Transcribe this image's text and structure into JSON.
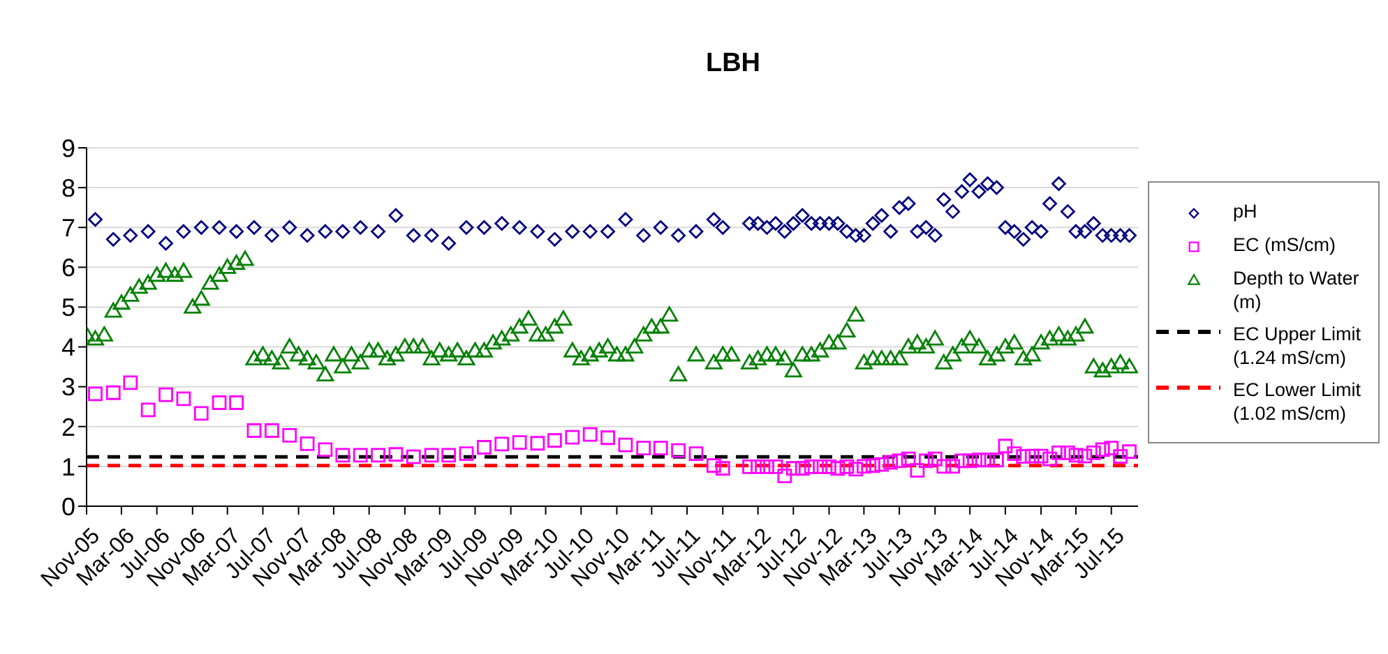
{
  "chart_data": {
    "type": "scatter",
    "title": "LBH",
    "x": [
      "2005-11",
      "2005-12",
      "2006-01",
      "2006-02",
      "2006-03",
      "2006-04",
      "2006-05",
      "2006-06",
      "2006-07",
      "2006-08",
      "2006-09",
      "2006-10",
      "2006-11",
      "2006-12",
      "2007-01",
      "2007-02",
      "2007-03",
      "2007-04",
      "2007-05",
      "2007-06",
      "2007-07",
      "2007-08",
      "2007-09",
      "2007-10",
      "2007-11",
      "2007-12",
      "2008-01",
      "2008-02",
      "2008-03",
      "2008-04",
      "2008-05",
      "2008-06",
      "2008-07",
      "2008-08",
      "2008-09",
      "2008-10",
      "2008-11",
      "2008-12",
      "2009-01",
      "2009-02",
      "2009-03",
      "2009-04",
      "2009-05",
      "2009-06",
      "2009-07",
      "2009-08",
      "2009-09",
      "2009-10",
      "2009-11",
      "2009-12",
      "2010-01",
      "2010-02",
      "2010-03",
      "2010-04",
      "2010-05",
      "2010-06",
      "2010-07",
      "2010-08",
      "2010-09",
      "2010-10",
      "2010-11",
      "2010-12",
      "2011-01",
      "2011-02",
      "2011-03",
      "2011-04",
      "2011-05",
      "2011-06",
      "2011-07",
      "2011-08",
      "2011-09",
      "2011-10",
      "2011-11",
      "2011-12",
      "2012-01",
      "2012-02",
      "2012-03",
      "2012-04",
      "2012-05",
      "2012-06",
      "2012-07",
      "2012-08",
      "2012-09",
      "2012-10",
      "2012-11",
      "2012-12",
      "2013-01",
      "2013-02",
      "2013-03",
      "2013-04",
      "2013-05",
      "2013-06",
      "2013-07",
      "2013-08",
      "2013-09",
      "2013-10",
      "2013-11",
      "2013-12",
      "2014-01",
      "2014-02",
      "2014-03",
      "2014-04",
      "2014-05",
      "2014-06",
      "2014-07",
      "2014-08",
      "2014-09",
      "2014-10",
      "2014-11",
      "2014-12",
      "2015-01",
      "2015-02",
      "2015-03",
      "2015-04",
      "2015-05",
      "2015-06",
      "2015-07",
      "2015-08",
      "2015-09"
    ],
    "series": [
      {
        "name": "pH",
        "color": "#000080",
        "marker": "diamond",
        "values": [
          null,
          7.2,
          null,
          6.7,
          null,
          6.8,
          null,
          6.9,
          null,
          6.6,
          null,
          6.9,
          null,
          7.0,
          null,
          7.0,
          null,
          6.9,
          null,
          7.0,
          null,
          6.8,
          null,
          7.0,
          null,
          6.8,
          null,
          6.9,
          null,
          6.9,
          null,
          7.0,
          null,
          6.9,
          null,
          7.3,
          null,
          6.8,
          null,
          6.8,
          null,
          6.6,
          null,
          7.0,
          null,
          7.0,
          null,
          7.1,
          null,
          7.0,
          null,
          6.9,
          null,
          6.7,
          null,
          6.9,
          null,
          6.9,
          null,
          6.9,
          null,
          7.2,
          null,
          6.8,
          null,
          7.0,
          null,
          6.8,
          null,
          6.9,
          null,
          7.2,
          7.0,
          null,
          null,
          7.1,
          7.1,
          7.0,
          7.1,
          6.9,
          7.1,
          7.3,
          7.1,
          7.1,
          7.1,
          7.1,
          6.9,
          6.8,
          6.8,
          7.1,
          7.3,
          6.9,
          7.5,
          7.6,
          6.9,
          7.0,
          6.8,
          7.7,
          7.4,
          7.9,
          8.2,
          7.9,
          8.1,
          8.0,
          7.0,
          6.9,
          6.7,
          7.0,
          6.9,
          7.6,
          8.1,
          7.4,
          6.9,
          6.9,
          7.1,
          6.8,
          6.8,
          6.8,
          6.8
        ]
      },
      {
        "name": "EC (mS/cm)",
        "color": "#ff00ff",
        "marker": "square",
        "values": [
          null,
          2.82,
          null,
          2.85,
          null,
          3.1,
          null,
          2.42,
          null,
          2.8,
          null,
          2.7,
          null,
          2.33,
          null,
          2.6,
          null,
          2.6,
          null,
          1.9,
          null,
          1.9,
          null,
          1.78,
          null,
          1.57,
          null,
          1.42,
          null,
          1.28,
          null,
          1.28,
          null,
          1.28,
          null,
          1.3,
          null,
          1.24,
          null,
          1.28,
          null,
          1.28,
          null,
          1.32,
          null,
          1.48,
          null,
          1.56,
          null,
          1.6,
          null,
          1.58,
          null,
          1.65,
          null,
          1.73,
          null,
          1.8,
          null,
          1.72,
          null,
          1.54,
          null,
          1.46,
          null,
          1.46,
          null,
          1.4,
          null,
          1.32,
          null,
          1.02,
          0.95,
          null,
          null,
          0.99,
          0.99,
          0.99,
          0.99,
          0.76,
          0.95,
          0.95,
          0.99,
          0.99,
          0.99,
          0.95,
          0.99,
          0.93,
          1.0,
          1.02,
          1.05,
          1.1,
          1.14,
          1.19,
          0.9,
          1.14,
          1.19,
          1.0,
          1.0,
          1.14,
          1.14,
          1.16,
          1.16,
          1.16,
          1.51,
          1.32,
          1.25,
          1.26,
          1.26,
          1.19,
          1.34,
          1.34,
          1.28,
          1.26,
          1.34,
          1.42,
          1.46,
          1.25,
          1.37
        ]
      },
      {
        "name": "Depth to Water (m)",
        "color": "#008000",
        "marker": "triangle",
        "values": [
          4.3,
          4.2,
          4.3,
          4.9,
          5.1,
          5.3,
          5.5,
          5.6,
          5.8,
          5.9,
          5.8,
          5.9,
          5.0,
          5.2,
          5.6,
          5.8,
          6.0,
          6.1,
          6.2,
          3.7,
          3.8,
          3.7,
          3.6,
          4.0,
          3.8,
          3.7,
          3.6,
          3.3,
          3.8,
          3.5,
          3.8,
          3.6,
          3.9,
          3.9,
          3.7,
          3.8,
          4.0,
          4.0,
          4.0,
          3.7,
          3.9,
          3.8,
          3.9,
          3.7,
          3.9,
          3.9,
          4.1,
          4.2,
          4.3,
          4.5,
          4.7,
          4.3,
          4.3,
          4.5,
          4.7,
          3.9,
          3.7,
          3.8,
          3.9,
          4.0,
          3.8,
          3.8,
          4.0,
          4.3,
          4.5,
          4.5,
          4.8,
          3.3,
          null,
          3.8,
          null,
          3.6,
          3.8,
          3.8,
          null,
          3.6,
          3.7,
          3.8,
          3.8,
          3.7,
          3.4,
          3.8,
          3.8,
          3.9,
          4.1,
          4.1,
          4.4,
          4.8,
          3.6,
          3.7,
          3.7,
          3.7,
          3.7,
          4.0,
          4.1,
          4.0,
          4.2,
          3.6,
          3.8,
          4.0,
          4.2,
          4.0,
          3.7,
          3.8,
          4.0,
          4.1,
          3.7,
          3.8,
          4.1,
          4.2,
          4.3,
          4.2,
          4.3,
          4.5,
          3.5,
          3.4,
          3.5,
          3.6,
          3.5
        ]
      }
    ],
    "ref_lines": [
      {
        "axis": "y",
        "value": 1.24,
        "label": "EC Upper Limit (1.24 mS/cm)",
        "color": "#000000",
        "line_style": "dashed"
      },
      {
        "axis": "y",
        "value": 1.02,
        "label": "EC Lower Limit (1.02 mS/cm)",
        "color": "#ff0000",
        "line_style": "dashed"
      }
    ],
    "xlim": [
      "2005-11",
      "2015-10"
    ],
    "xticks": [
      {
        "value": "2005-11",
        "label": "Nov-05"
      },
      {
        "value": "2006-03",
        "label": "Mar-06"
      },
      {
        "value": "2006-07",
        "label": "Jul-06"
      },
      {
        "value": "2006-11",
        "label": "Nov-06"
      },
      {
        "value": "2007-03",
        "label": "Mar-07"
      },
      {
        "value": "2007-07",
        "label": "Jul-07"
      },
      {
        "value": "2007-11",
        "label": "Nov-07"
      },
      {
        "value": "2008-03",
        "label": "Mar-08"
      },
      {
        "value": "2008-07",
        "label": "Jul-08"
      },
      {
        "value": "2008-11",
        "label": "Nov-08"
      },
      {
        "value": "2009-03",
        "label": "Mar-09"
      },
      {
        "value": "2009-07",
        "label": "Jul-09"
      },
      {
        "value": "2009-11",
        "label": "Nov-09"
      },
      {
        "value": "2010-03",
        "label": "Mar-10"
      },
      {
        "value": "2010-07",
        "label": "Jul-10"
      },
      {
        "value": "2010-11",
        "label": "Nov-10"
      },
      {
        "value": "2011-03",
        "label": "Mar-11"
      },
      {
        "value": "2011-07",
        "label": "Jul-11"
      },
      {
        "value": "2011-11",
        "label": "Nov-11"
      },
      {
        "value": "2012-03",
        "label": "Mar-12"
      },
      {
        "value": "2012-07",
        "label": "Jul-12"
      },
      {
        "value": "2012-11",
        "label": "Nov-12"
      },
      {
        "value": "2013-03",
        "label": "Mar-13"
      },
      {
        "value": "2013-07",
        "label": "Jul-13"
      },
      {
        "value": "2013-11",
        "label": "Nov-13"
      },
      {
        "value": "2014-03",
        "label": "Mar-14"
      },
      {
        "value": "2014-07",
        "label": "Jul-14"
      },
      {
        "value": "2014-11",
        "label": "Nov-14"
      },
      {
        "value": "2015-03",
        "label": "Mar-15"
      },
      {
        "value": "2015-07",
        "label": "Jul-15"
      }
    ],
    "ylim": [
      0,
      9
    ],
    "yticks": [
      0,
      1,
      2,
      3,
      4,
      5,
      6,
      7,
      8,
      9
    ],
    "grid": "y",
    "legend": "right"
  }
}
